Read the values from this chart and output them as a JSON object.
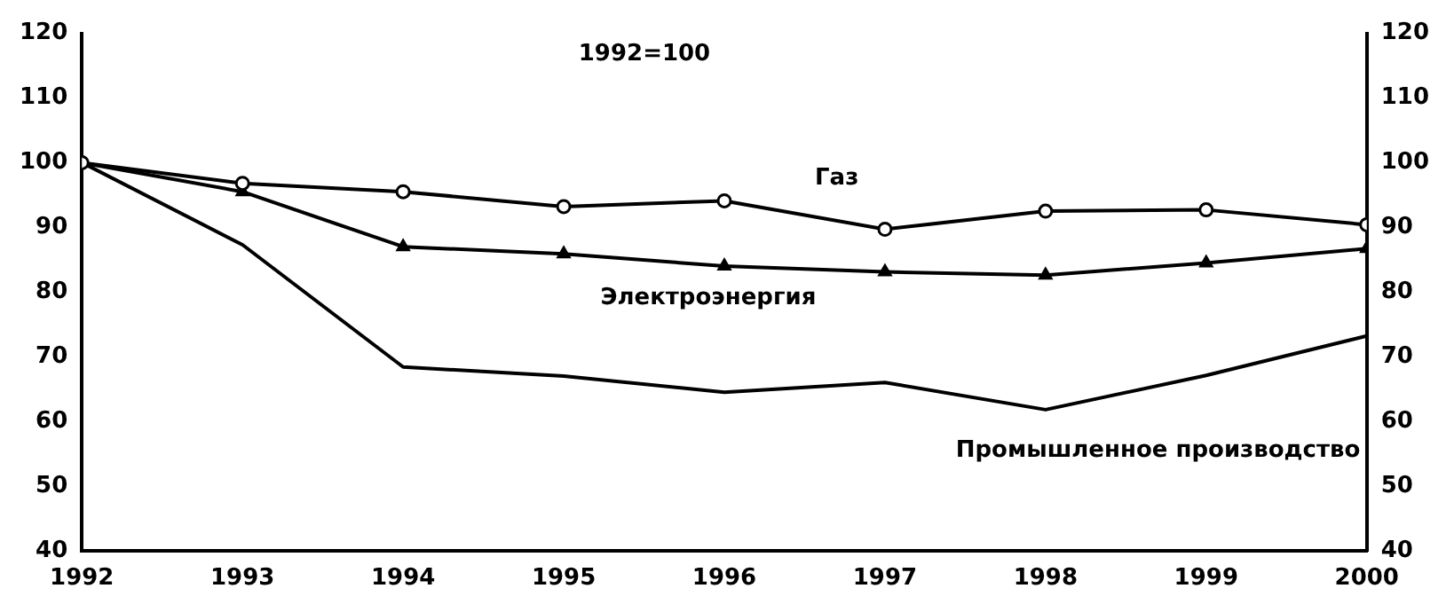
{
  "chart_data": {
    "type": "line",
    "annotations": [
      "1992=100"
    ],
    "x": [
      1992,
      1993,
      1994,
      1995,
      1996,
      1997,
      1998,
      1999,
      2000
    ],
    "series": [
      {
        "name": "Газ",
        "color": "#000000",
        "marker": "circle",
        "values": [
          100,
          96.8,
          95.5,
          93.2,
          94.1,
          89.7,
          92.5,
          92.7,
          90.4
        ]
      },
      {
        "name": "Электроэнергия",
        "color": "#000000",
        "marker": "triangle",
        "values": [
          100,
          95.5,
          87,
          85.9,
          84,
          83.1,
          82.6,
          84.5,
          86.7
        ]
      },
      {
        "name": "Промышленное производство",
        "color": "#000000",
        "marker": "none",
        "values": [
          100,
          87.3,
          68.4,
          67,
          64.5,
          66,
          61.8,
          67.1,
          73.2
        ]
      }
    ],
    "xlim": [
      1992,
      2000
    ],
    "xticks": [
      1992,
      1993,
      1994,
      1995,
      1996,
      1997,
      1998,
      1999,
      2000
    ],
    "ylim": [
      40,
      120
    ],
    "yticks": [
      40,
      50,
      60,
      70,
      80,
      90,
      100,
      110,
      120
    ],
    "y2lim": [
      40,
      120
    ],
    "y2ticks": [
      40,
      50,
      60,
      70,
      80,
      90,
      100,
      110,
      120
    ],
    "grid": false,
    "legend": false,
    "line_style": "solid"
  }
}
